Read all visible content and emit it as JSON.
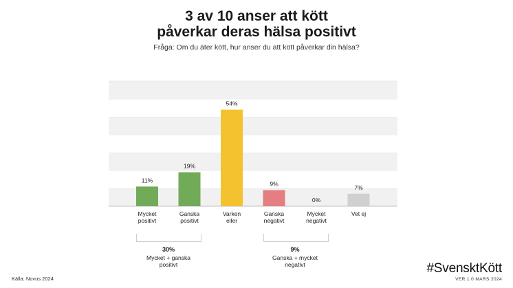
{
  "title_line1": "3 av 10 anser att kött",
  "title_line2": "påverkar deras hälsa positivt",
  "subtitle": "Fråga: Om du äter kött, hur anser du att kött påverkar din hälsa?",
  "chart_data": {
    "type": "bar",
    "categories": [
      [
        "Mycket",
        "positivt"
      ],
      [
        "Ganska",
        "positivt"
      ],
      [
        "Varken",
        "eller"
      ],
      [
        "Ganska",
        "negativt"
      ],
      [
        "Mycket",
        "negativt"
      ],
      [
        "Vet ej"
      ]
    ],
    "values": [
      11,
      19,
      54,
      9,
      0,
      7
    ],
    "value_labels": [
      "11%",
      "19%",
      "54%",
      "9%",
      "0%",
      "7%"
    ],
    "colors": [
      "#72ab57",
      "#72ab57",
      "#f4c22f",
      "#e57e80",
      "#d9d9d9",
      "#d0d0d0"
    ],
    "ylim": [
      0,
      70
    ],
    "grid_bands": true
  },
  "groups": [
    {
      "percent": "30%",
      "label_line1": "Mycket + ganska",
      "label_line2": "positivt"
    },
    {
      "percent": "9%",
      "label_line1": "Ganska + mycket",
      "label_line2": "negativt"
    }
  ],
  "source": "Källa: Novus 2024",
  "brand": "#SvensktKött",
  "version": "VER 1.0 MARS 2024"
}
